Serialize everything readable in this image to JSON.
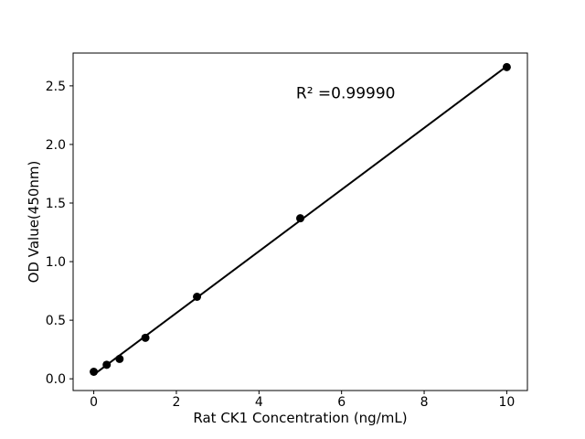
{
  "chart_data": {
    "type": "scatter",
    "title": "",
    "xlabel": "Rat CK1 Concentration (ng/mL)",
    "ylabel": "OD Value(450nm)",
    "x": [
      0,
      0.313,
      0.625,
      1.25,
      2.5,
      5,
      10
    ],
    "y": [
      0.06,
      0.12,
      0.17,
      0.35,
      0.7,
      1.37,
      2.66
    ],
    "fit_line": {
      "slope": 0.2632,
      "intercept": 0.0355,
      "x_start": 0,
      "x_end": 10
    },
    "annotation": {
      "text": "R² =0.99990",
      "x": 6.1,
      "y": 2.44
    },
    "xlim": [
      -0.5,
      10.5
    ],
    "ylim": [
      -0.1,
      2.78
    ],
    "xticks": [
      0,
      2,
      4,
      6,
      8,
      10
    ],
    "yticks": [
      0.0,
      0.5,
      1.0,
      1.5,
      2.0,
      2.5
    ],
    "grid": false,
    "legend_position": "none",
    "marker_color": "#000000",
    "line_color": "#000000",
    "background_color": "#ffffff"
  }
}
